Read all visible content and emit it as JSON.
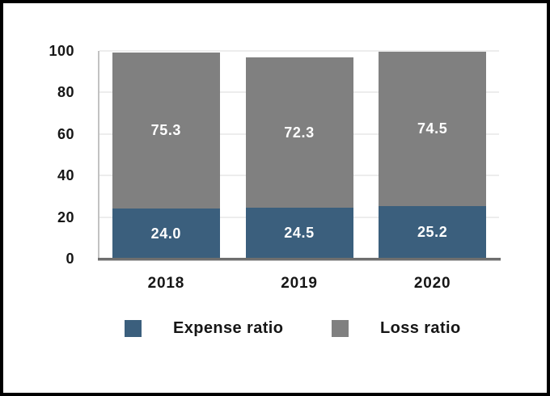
{
  "chart_data": {
    "type": "bar",
    "stacked": true,
    "title": "",
    "xlabel": "",
    "ylabel": "",
    "categories": [
      "2018",
      "2019",
      "2020"
    ],
    "series": [
      {
        "name": "Expense ratio",
        "color": "#3b5f7d",
        "values": [
          24.0,
          24.5,
          25.2
        ],
        "labels": [
          "24.0",
          "24.5",
          "25.2"
        ]
      },
      {
        "name": "Loss ratio",
        "color": "#808080",
        "values": [
          75.3,
          72.3,
          74.5
        ],
        "labels": [
          "75.3",
          "72.3",
          "74.5"
        ]
      }
    ],
    "yticks": [
      0,
      20,
      40,
      60,
      80,
      100
    ],
    "ylim": [
      0,
      100
    ],
    "grid": true,
    "legend_position": "bottom",
    "colors": {
      "gridline": "#ededed",
      "y_axis_line": "#c2c2c2",
      "x_axis_line": "#6e6e6e",
      "axis_text": "#161616",
      "bar_label_text": "#ffffff",
      "frame_border": "#000000",
      "background": "#ffffff"
    }
  }
}
